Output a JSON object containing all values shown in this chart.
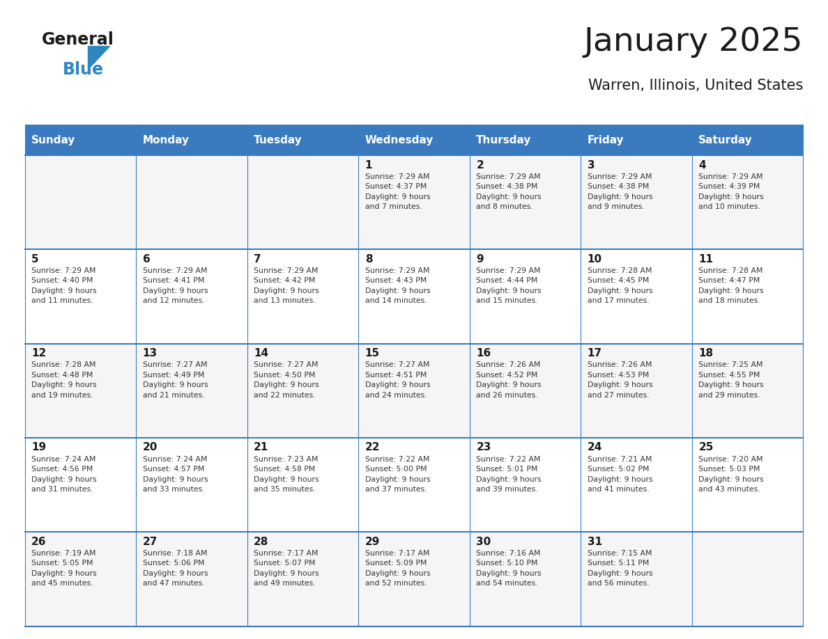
{
  "title": "January 2025",
  "subtitle": "Warren, Illinois, United States",
  "header_color": "#3a7bbf",
  "header_text_color": "#ffffff",
  "border_color": "#3a7bbf",
  "days_of_week": [
    "Sunday",
    "Monday",
    "Tuesday",
    "Wednesday",
    "Thursday",
    "Friday",
    "Saturday"
  ],
  "weeks": [
    [
      {
        "day": "",
        "info": ""
      },
      {
        "day": "",
        "info": ""
      },
      {
        "day": "",
        "info": ""
      },
      {
        "day": "1",
        "info": "Sunrise: 7:29 AM\nSunset: 4:37 PM\nDaylight: 9 hours\nand 7 minutes."
      },
      {
        "day": "2",
        "info": "Sunrise: 7:29 AM\nSunset: 4:38 PM\nDaylight: 9 hours\nand 8 minutes."
      },
      {
        "day": "3",
        "info": "Sunrise: 7:29 AM\nSunset: 4:38 PM\nDaylight: 9 hours\nand 9 minutes."
      },
      {
        "day": "4",
        "info": "Sunrise: 7:29 AM\nSunset: 4:39 PM\nDaylight: 9 hours\nand 10 minutes."
      }
    ],
    [
      {
        "day": "5",
        "info": "Sunrise: 7:29 AM\nSunset: 4:40 PM\nDaylight: 9 hours\nand 11 minutes."
      },
      {
        "day": "6",
        "info": "Sunrise: 7:29 AM\nSunset: 4:41 PM\nDaylight: 9 hours\nand 12 minutes."
      },
      {
        "day": "7",
        "info": "Sunrise: 7:29 AM\nSunset: 4:42 PM\nDaylight: 9 hours\nand 13 minutes."
      },
      {
        "day": "8",
        "info": "Sunrise: 7:29 AM\nSunset: 4:43 PM\nDaylight: 9 hours\nand 14 minutes."
      },
      {
        "day": "9",
        "info": "Sunrise: 7:29 AM\nSunset: 4:44 PM\nDaylight: 9 hours\nand 15 minutes."
      },
      {
        "day": "10",
        "info": "Sunrise: 7:28 AM\nSunset: 4:45 PM\nDaylight: 9 hours\nand 17 minutes."
      },
      {
        "day": "11",
        "info": "Sunrise: 7:28 AM\nSunset: 4:47 PM\nDaylight: 9 hours\nand 18 minutes."
      }
    ],
    [
      {
        "day": "12",
        "info": "Sunrise: 7:28 AM\nSunset: 4:48 PM\nDaylight: 9 hours\nand 19 minutes."
      },
      {
        "day": "13",
        "info": "Sunrise: 7:27 AM\nSunset: 4:49 PM\nDaylight: 9 hours\nand 21 minutes."
      },
      {
        "day": "14",
        "info": "Sunrise: 7:27 AM\nSunset: 4:50 PM\nDaylight: 9 hours\nand 22 minutes."
      },
      {
        "day": "15",
        "info": "Sunrise: 7:27 AM\nSunset: 4:51 PM\nDaylight: 9 hours\nand 24 minutes."
      },
      {
        "day": "16",
        "info": "Sunrise: 7:26 AM\nSunset: 4:52 PM\nDaylight: 9 hours\nand 26 minutes."
      },
      {
        "day": "17",
        "info": "Sunrise: 7:26 AM\nSunset: 4:53 PM\nDaylight: 9 hours\nand 27 minutes."
      },
      {
        "day": "18",
        "info": "Sunrise: 7:25 AM\nSunset: 4:55 PM\nDaylight: 9 hours\nand 29 minutes."
      }
    ],
    [
      {
        "day": "19",
        "info": "Sunrise: 7:24 AM\nSunset: 4:56 PM\nDaylight: 9 hours\nand 31 minutes."
      },
      {
        "day": "20",
        "info": "Sunrise: 7:24 AM\nSunset: 4:57 PM\nDaylight: 9 hours\nand 33 minutes."
      },
      {
        "day": "21",
        "info": "Sunrise: 7:23 AM\nSunset: 4:58 PM\nDaylight: 9 hours\nand 35 minutes."
      },
      {
        "day": "22",
        "info": "Sunrise: 7:22 AM\nSunset: 5:00 PM\nDaylight: 9 hours\nand 37 minutes."
      },
      {
        "day": "23",
        "info": "Sunrise: 7:22 AM\nSunset: 5:01 PM\nDaylight: 9 hours\nand 39 minutes."
      },
      {
        "day": "24",
        "info": "Sunrise: 7:21 AM\nSunset: 5:02 PM\nDaylight: 9 hours\nand 41 minutes."
      },
      {
        "day": "25",
        "info": "Sunrise: 7:20 AM\nSunset: 5:03 PM\nDaylight: 9 hours\nand 43 minutes."
      }
    ],
    [
      {
        "day": "26",
        "info": "Sunrise: 7:19 AM\nSunset: 5:05 PM\nDaylight: 9 hours\nand 45 minutes."
      },
      {
        "day": "27",
        "info": "Sunrise: 7:18 AM\nSunset: 5:06 PM\nDaylight: 9 hours\nand 47 minutes."
      },
      {
        "day": "28",
        "info": "Sunrise: 7:17 AM\nSunset: 5:07 PM\nDaylight: 9 hours\nand 49 minutes."
      },
      {
        "day": "29",
        "info": "Sunrise: 7:17 AM\nSunset: 5:09 PM\nDaylight: 9 hours\nand 52 minutes."
      },
      {
        "day": "30",
        "info": "Sunrise: 7:16 AM\nSunset: 5:10 PM\nDaylight: 9 hours\nand 54 minutes."
      },
      {
        "day": "31",
        "info": "Sunrise: 7:15 AM\nSunset: 5:11 PM\nDaylight: 9 hours\nand 56 minutes."
      },
      {
        "day": "",
        "info": ""
      }
    ]
  ],
  "logo_text_general": "General",
  "logo_text_blue": "Blue",
  "logo_color_general": "#1a1a1a",
  "logo_color_blue": "#2e86c1",
  "logo_triangle_color": "#2e86c1"
}
